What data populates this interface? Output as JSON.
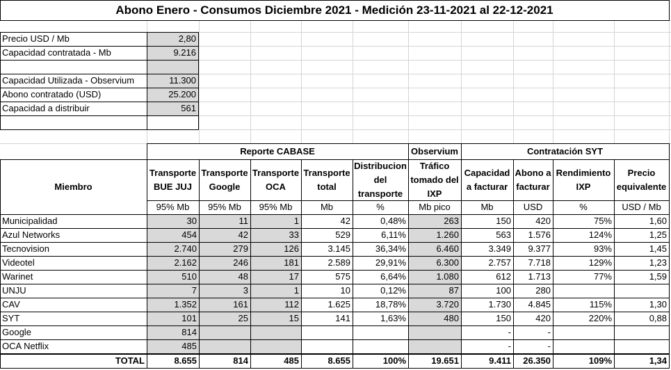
{
  "title": "Abono Enero - Consumos Diciembre 2021 - Medición 23-11-2021 al 22-12-2021",
  "params": [
    {
      "label": "Precio USD / Mb",
      "value": "2,80"
    },
    {
      "label": "Capacidad contratada - Mb",
      "value": "9.216"
    },
    {
      "label": "Capacidad Utilizada - Observium",
      "value": "11.300"
    },
    {
      "label": "Abono contratado (USD)",
      "value": "25.200"
    },
    {
      "label": "Capacidad a distribuir",
      "value": "561"
    }
  ],
  "groups": {
    "cabase": "Reporte CABASE",
    "observium": "Observium",
    "syt": "Contratación SYT"
  },
  "columns": [
    {
      "header": "Miembro",
      "unit": ""
    },
    {
      "header": "Transporte BUE JUJ",
      "unit": "95% Mb"
    },
    {
      "header": "Transporte Google",
      "unit": "95% Mb"
    },
    {
      "header": "Transporte OCA",
      "unit": "95% Mb"
    },
    {
      "header": "Transporte total",
      "unit": "Mb"
    },
    {
      "header": "Distribucion del transporte",
      "unit": "%"
    },
    {
      "header": "Tráfico tomado del IXP",
      "unit": "Mb pico"
    },
    {
      "header": "Capacidad a facturar",
      "unit": "Mb"
    },
    {
      "header": "Abono a facturar",
      "unit": "USD"
    },
    {
      "header": "Rendimiento IXP",
      "unit": "%"
    },
    {
      "header": "Precio equivalente",
      "unit": "USD / Mb"
    }
  ],
  "rows": [
    [
      "Municipalidad",
      "30",
      "11",
      "1",
      "42",
      "0,48%",
      "263",
      "150",
      "420",
      "75%",
      "1,60"
    ],
    [
      "Azul Networks",
      "454",
      "42",
      "33",
      "529",
      "6,11%",
      "1.260",
      "563",
      "1.576",
      "124%",
      "1,25"
    ],
    [
      "Tecnovision",
      "2.740",
      "279",
      "126",
      "3.145",
      "36,34%",
      "6.460",
      "3.349",
      "9.377",
      "93%",
      "1,45"
    ],
    [
      "Videotel",
      "2.162",
      "246",
      "181",
      "2.589",
      "29,91%",
      "6.300",
      "2.757",
      "7.718",
      "129%",
      "1,23"
    ],
    [
      "Warinet",
      "510",
      "48",
      "17",
      "575",
      "6,64%",
      "1.080",
      "612",
      "1.713",
      "77%",
      "1,59"
    ],
    [
      "UNJU",
      "7",
      "3",
      "1",
      "10",
      "0,12%",
      "87",
      "100",
      "280",
      "",
      ""
    ],
    [
      "CAV",
      "1.352",
      "161",
      "112",
      "1.625",
      "18,78%",
      "3.720",
      "1.730",
      "4.845",
      "115%",
      "1,30"
    ],
    [
      "SYT",
      "101",
      "25",
      "15",
      "141",
      "1,63%",
      "480",
      "150",
      "420",
      "220%",
      "0,88"
    ],
    [
      "Google",
      "814",
      "",
      "",
      "",
      "",
      "",
      "-",
      "-",
      "",
      ""
    ],
    [
      "OCA Netflix",
      "485",
      "",
      "",
      "",
      "",
      "",
      "-",
      "-",
      "",
      ""
    ]
  ],
  "total": [
    "TOTAL",
    "8.655",
    "814",
    "485",
    "8.655",
    "100%",
    "19.651",
    "9.411",
    "26.350",
    "109%",
    "1,34"
  ]
}
